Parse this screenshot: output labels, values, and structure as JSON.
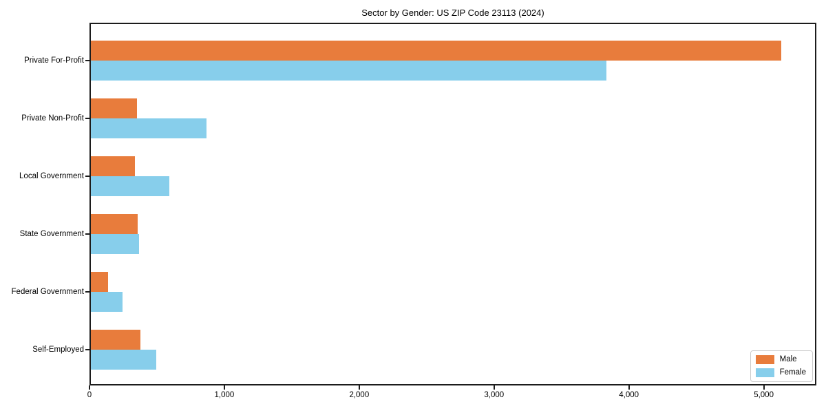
{
  "chart_data": {
    "type": "bar",
    "orientation": "horizontal",
    "title": "Sector by Gender: US ZIP Code 23113 (2024)",
    "categories": [
      "Private For-Profit",
      "Private Non-Profit",
      "Local Government",
      "State Government",
      "Federal Government",
      "Self-Employed"
    ],
    "series": [
      {
        "name": "Male",
        "color": "#E87C3C",
        "values": [
          5130,
          350,
          335,
          355,
          140,
          380
        ]
      },
      {
        "name": "Female",
        "color": "#87CEEB",
        "values": [
          3835,
          870,
          590,
          365,
          245,
          495
        ]
      }
    ],
    "xlabel": "",
    "ylabel": "",
    "xlim": [
      0,
      5390
    ],
    "x_ticks": [
      0,
      1000,
      2000,
      3000,
      4000,
      5000
    ],
    "x_tick_labels": [
      "0",
      "1,000",
      "2,000",
      "3,000",
      "4,000",
      "5,000"
    ],
    "legend_position": "lower right",
    "grid": false,
    "axis_color": "#1c1c1c"
  }
}
